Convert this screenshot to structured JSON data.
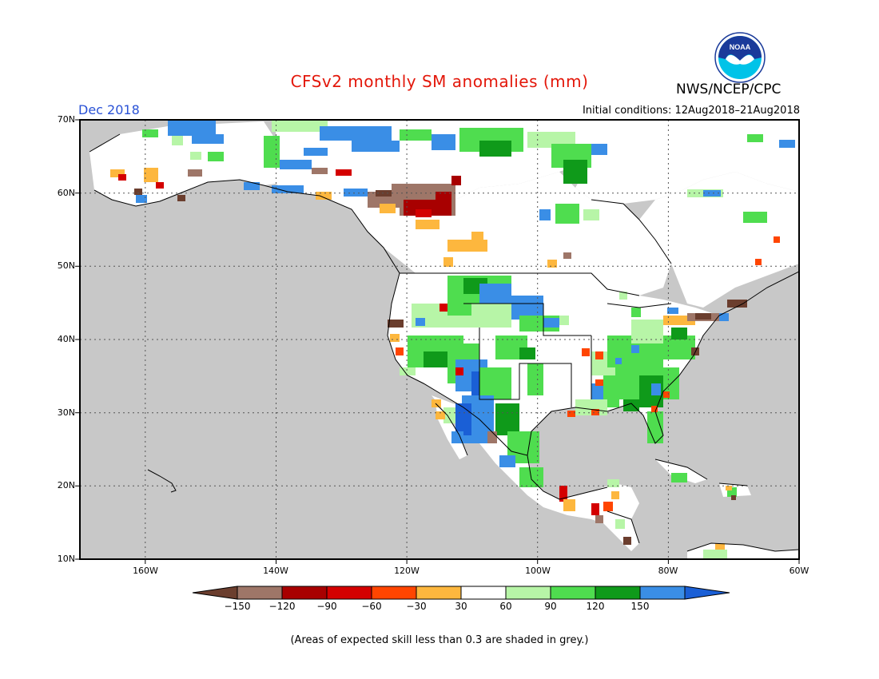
{
  "title": "CFSv2 monthly SM anomalies (mm)",
  "agency": "NWS/NCEP/CPC",
  "logo_text": "NOAA",
  "valid_month": "Dec 2018",
  "initial_conditions": "Initial conditions: 12Aug2018–21Aug2018",
  "footnote": "(Areas of expected skill less than 0.3 are shaded in grey.)",
  "axes": {
    "lat_labels": [
      "70N",
      "60N",
      "50N",
      "40N",
      "30N",
      "20N",
      "10N"
    ],
    "lon_labels": [
      "160W",
      "140W",
      "120W",
      "100W",
      "80W",
      "60W"
    ]
  },
  "colorbar": {
    "labels": [
      "−150",
      "−120",
      "−90",
      "−60",
      "−30",
      "30",
      "60",
      "90",
      "120",
      "150"
    ],
    "colors": [
      "#6b3e2e",
      "#9e7668",
      "#a80000",
      "#d40000",
      "#ff4500",
      "#fdb73e",
      "#ffffff",
      "#b7f5a7",
      "#4fdd4f",
      "#0f9a1a",
      "#3a8ee6",
      "#1a5fd6"
    ]
  },
  "colors": {
    "grey_low_skill": "#c8c8c8",
    "land_white": "#ffffff",
    "title_red": "#e3170a",
    "month_blue": "#2a52d6"
  }
}
